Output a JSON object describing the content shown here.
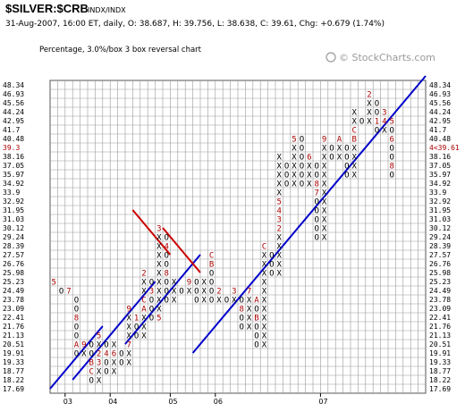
{
  "header": {
    "symbol": "$SILVER:$CRB",
    "tag": "INDX/INDX",
    "info": "31-Aug-2007, 16:00 ET, daily, O: 38.687, H: 39.756, L: 38.638, C: 39.61, Chg: +0.679 (1.74%)",
    "subtitle": "Percentage, 3.0%/box 3 box reversal chart",
    "watermark": "© StockCharts.com"
  },
  "colors": {
    "x_mark": "#000000",
    "o_mark": "#000000",
    "month_mark": "#aa0000",
    "trendline_up": "#0000cc",
    "trendline_down": "#cc0000",
    "grid": "#9a9a9a"
  },
  "chart_data": {
    "type": "point-and-figure",
    "box_size": "3.0%",
    "reversal": 3,
    "y_levels": [
      17.69,
      18.22,
      18.77,
      19.33,
      19.91,
      20.51,
      21.13,
      21.76,
      22.41,
      23.09,
      23.78,
      24.49,
      25.23,
      25.98,
      26.76,
      27.57,
      28.39,
      29.24,
      30.12,
      31.03,
      31.95,
      32.92,
      33.9,
      34.92,
      35.97,
      37.05,
      38.16,
      39.3,
      40.48,
      41.7,
      42.95,
      44.24,
      45.56,
      46.93,
      48.34
    ],
    "left_axis_labels": [
      "48.34",
      "46.93",
      "45.56",
      "44.24",
      "42.95",
      "41.7",
      "40.48",
      "39.3",
      "38.16",
      "37.05",
      "35.97",
      "34.92",
      "33.9",
      "32.92",
      "31.95",
      "31.03",
      "30.12",
      "29.24",
      "28.39",
      "27.57",
      "26.76",
      "25.98",
      "25.23",
      "24.49",
      "23.78",
      "23.09",
      "22.41",
      "21.76",
      "21.13",
      "20.51",
      "19.91",
      "19.33",
      "18.77",
      "18.22",
      "17.69"
    ],
    "right_axis_labels": [
      "48.34",
      "46.93",
      "45.56",
      "44.24",
      "42.95",
      "41.7",
      "40.48",
      "4<39.61",
      "38.16",
      "37.05",
      "35.97",
      "34.92",
      "33.9",
      "32.92",
      "31.95",
      "31.03",
      "30.12",
      "29.24",
      "28.39",
      "27.57",
      "26.76",
      "25.98",
      "25.23",
      "24.49",
      "23.78",
      "23.09",
      "22.41",
      "21.76",
      "21.13",
      "20.51",
      "19.91",
      "19.33",
      "18.77",
      "18.22",
      "17.69"
    ],
    "highlight_label": "39.3",
    "x_labels": [
      {
        "label": "03",
        "col": 2
      },
      {
        "label": "04",
        "col": 8
      },
      {
        "label": "05",
        "col": 16
      },
      {
        "label": "06",
        "col": 22
      },
      {
        "label": "07",
        "col": 36
      }
    ],
    "columns": [
      {
        "type": "X",
        "bottom": 12,
        "top": 12,
        "marks": {
          "12": "5"
        }
      },
      {
        "type": "O",
        "bottom": 11,
        "top": 11
      },
      {
        "type": "X",
        "bottom": 11,
        "top": 11,
        "marks": {
          "11": "7"
        }
      },
      {
        "type": "O",
        "bottom": 4,
        "top": 10,
        "marks": {
          "8": "8",
          "5": "A"
        }
      },
      {
        "type": "X",
        "bottom": 4,
        "top": 5,
        "marks": {
          "5": "9"
        }
      },
      {
        "type": "O",
        "bottom": 1,
        "top": 5,
        "marks": {
          "3": "B",
          "2": "C"
        }
      },
      {
        "type": "X",
        "bottom": 1,
        "top": 6,
        "marks": {
          "6": "5",
          "4": "2",
          "3": "3"
        }
      },
      {
        "type": "O",
        "bottom": 2,
        "top": 5,
        "marks": {
          "4": "4"
        }
      },
      {
        "type": "X",
        "bottom": 2,
        "top": 5,
        "marks": {
          "4": "6"
        }
      },
      {
        "type": "O",
        "bottom": 3,
        "top": 4
      },
      {
        "type": "X",
        "bottom": 3,
        "top": 9,
        "marks": {
          "9": "9",
          "5": "7"
        }
      },
      {
        "type": "O",
        "bottom": 6,
        "top": 8,
        "marks": {
          "8": "1"
        }
      },
      {
        "type": "X",
        "bottom": 6,
        "top": 13,
        "marks": {
          "13": "2",
          "10": "C",
          "9": "A"
        }
      },
      {
        "type": "O",
        "bottom": 8,
        "top": 12,
        "marks": {
          "11": "3"
        }
      },
      {
        "type": "X",
        "bottom": 8,
        "top": 18,
        "marks": {
          "8": "5",
          "18": "3"
        }
      },
      {
        "type": "O",
        "bottom": 10,
        "top": 17,
        "marks": {
          "16": "4",
          "13": "8"
        }
      },
      {
        "type": "X",
        "bottom": 10,
        "top": 12
      },
      {
        "type": "O",
        "bottom": 11,
        "top": 11
      },
      {
        "type": "X",
        "bottom": 11,
        "top": 12,
        "marks": {
          "12": "9"
        }
      },
      {
        "type": "O",
        "bottom": 10,
        "top": 12
      },
      {
        "type": "X",
        "bottom": 10,
        "top": 12
      },
      {
        "type": "O",
        "bottom": 10,
        "top": 15,
        "marks": {
          "15": "C",
          "14": "B"
        }
      },
      {
        "type": "X",
        "bottom": 10,
        "top": 11,
        "marks": {
          "11": "2"
        }
      },
      {
        "type": "O",
        "bottom": 10,
        "top": 10
      },
      {
        "type": "X",
        "bottom": 10,
        "top": 11,
        "marks": {
          "11": "3"
        }
      },
      {
        "type": "O",
        "bottom": 7,
        "top": 10,
        "marks": {
          "9": "8"
        }
      },
      {
        "type": "X",
        "bottom": 7,
        "top": 11,
        "marks": {
          "11": "7"
        }
      },
      {
        "type": "O",
        "bottom": 5,
        "top": 10,
        "marks": {
          "10": "A",
          "8": "B"
        }
      },
      {
        "type": "X",
        "bottom": 5,
        "top": 16,
        "marks": {
          "16": "C"
        }
      },
      {
        "type": "O",
        "bottom": 13,
        "top": 15
      },
      {
        "type": "X",
        "bottom": 13,
        "top": 26,
        "marks": {
          "18": "2",
          "19": "3",
          "20": "4",
          "21": "5"
        }
      },
      {
        "type": "O",
        "bottom": 23,
        "top": 25
      },
      {
        "type": "X",
        "bottom": 23,
        "top": 28,
        "marks": {
          "28": "5"
        }
      },
      {
        "type": "O",
        "bottom": 23,
        "top": 28
      },
      {
        "type": "X",
        "bottom": 23,
        "top": 26,
        "marks": {
          "26": "6"
        }
      },
      {
        "type": "O",
        "bottom": 17,
        "top": 25,
        "marks": {
          "23": "8",
          "22": "7"
        }
      },
      {
        "type": "X",
        "bottom": 17,
        "top": 28,
        "marks": {
          "28": "9"
        }
      },
      {
        "type": "O",
        "bottom": 26,
        "top": 27
      },
      {
        "type": "X",
        "bottom": 26,
        "top": 28,
        "marks": {
          "28": "A"
        }
      },
      {
        "type": "O",
        "bottom": 24,
        "top": 27
      },
      {
        "type": "X",
        "bottom": 24,
        "top": 31,
        "marks": {
          "28": "B",
          "29": "C"
        }
      },
      {
        "type": "O",
        "bottom": 30,
        "top": 30
      },
      {
        "type": "X",
        "bottom": 30,
        "top": 33,
        "marks": {
          "29": "C",
          "33": "2"
        }
      },
      {
        "type": "O",
        "bottom": 29,
        "top": 32,
        "marks": {
          "30": "1"
        }
      },
      {
        "type": "X",
        "bottom": 29,
        "top": 31,
        "marks": {
          "31": "3",
          "30": "4"
        }
      },
      {
        "type": "O",
        "bottom": 24,
        "top": 30,
        "marks": {
          "30": "5",
          "28": "6",
          "25": "8"
        }
      }
    ],
    "trendlines": [
      {
        "color": "up",
        "from": [
          -0.5,
          0
        ],
        "to": [
          6.5,
          7
        ]
      },
      {
        "color": "up",
        "from": [
          2.5,
          1
        ],
        "to": [
          13.5,
          12
        ]
      },
      {
        "color": "up",
        "from": [
          9.5,
          5
        ],
        "to": [
          19.5,
          15
        ]
      },
      {
        "color": "up",
        "from": [
          18.5,
          4
        ],
        "to": [
          49.5,
          35
        ]
      },
      {
        "color": "down",
        "from": [
          10.5,
          20
        ],
        "to": [
          15.5,
          15
        ]
      },
      {
        "color": "down",
        "from": [
          14.5,
          18
        ],
        "to": [
          19.5,
          13
        ]
      }
    ]
  }
}
